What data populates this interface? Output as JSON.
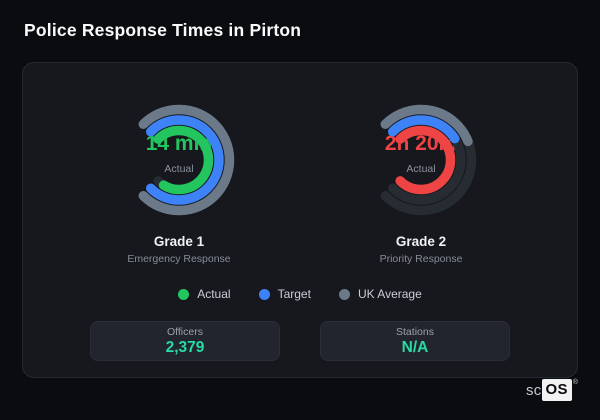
{
  "header": {
    "title": "Police Response Times in Pirton"
  },
  "legend": {
    "items": [
      {
        "label": "Actual",
        "color": "#22c55e"
      },
      {
        "label": "Target",
        "color": "#3e82f7"
      },
      {
        "label": "UK Average",
        "color": "#6b7989"
      }
    ]
  },
  "chart_data": [
    {
      "type": "gauge",
      "title": "Grade 1",
      "subtitle": "Emergency Response",
      "center_value": "14 min",
      "center_label": "Actual",
      "center_value_color": "#22c55e",
      "arc": {
        "start_deg": 315,
        "extent_deg": 270,
        "track_color": "#272b32"
      },
      "rings": [
        {
          "name": "UK Average",
          "color": "#6b7989",
          "percent": 100
        },
        {
          "name": "Target",
          "color": "#3e82f7",
          "percent": 100
        },
        {
          "name": "Actual",
          "color": "#22c55e",
          "percent": 95
        }
      ]
    },
    {
      "type": "gauge",
      "title": "Grade 2",
      "subtitle": "Priority Response",
      "center_value": "2h 20m",
      "center_label": "Actual",
      "center_value_color": "#ee4444",
      "arc": {
        "start_deg": 315,
        "extent_deg": 270,
        "track_color": "#272b32"
      },
      "rings": [
        {
          "name": "UK Average",
          "color": "#6b7989",
          "percent": 42
        },
        {
          "name": "Target",
          "color": "#3e82f7",
          "percent": 38
        },
        {
          "name": "Actual",
          "color": "#ee4444",
          "percent": 100
        }
      ]
    }
  ],
  "stats": [
    {
      "label": "Officers",
      "value": "2,379"
    },
    {
      "label": "Stations",
      "value": "N/A"
    }
  ],
  "stat_value_color": "#27dba4",
  "brand": {
    "prefix": "sc",
    "box": "OS",
    "registered": "®"
  }
}
